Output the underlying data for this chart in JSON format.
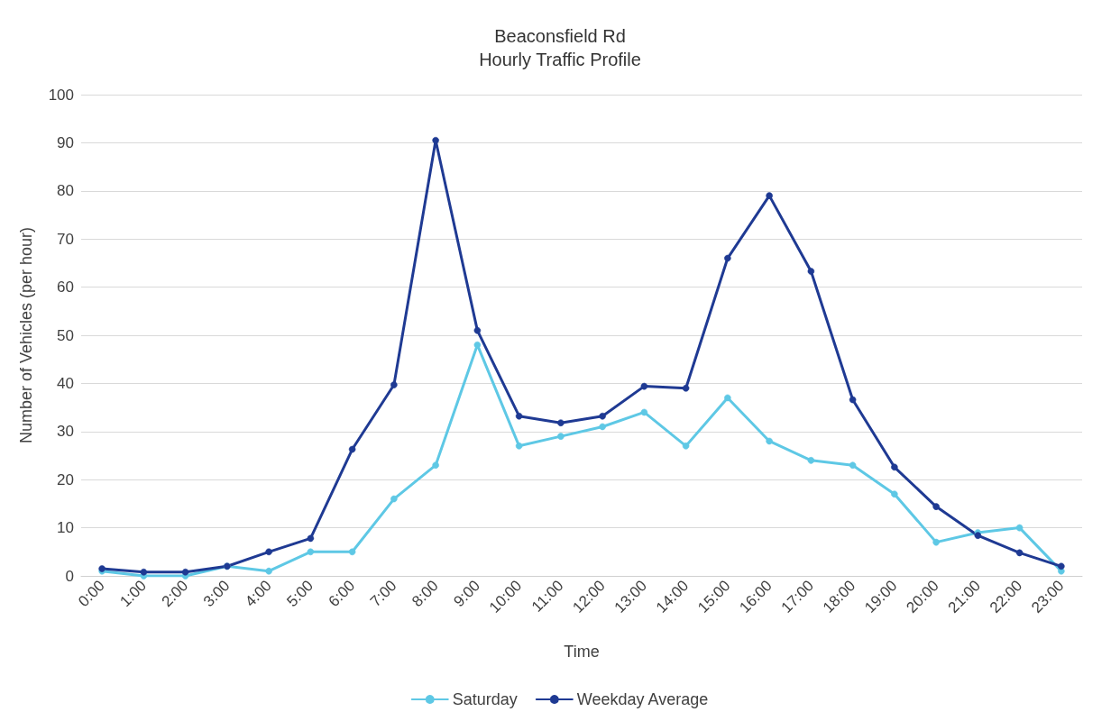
{
  "chart_data": {
    "type": "line",
    "title": "Beaconsfield Rd\nHourly Traffic Profile",
    "xlabel": "Time",
    "ylabel": "Number of Vehicles (per hour)",
    "categories": [
      "0:00",
      "1:00",
      "2:00",
      "3:00",
      "4:00",
      "5:00",
      "6:00",
      "7:00",
      "8:00",
      "9:00",
      "10:00",
      "11:00",
      "12:00",
      "13:00",
      "14:00",
      "15:00",
      "16:00",
      "17:00",
      "18:00",
      "19:00",
      "20:00",
      "21:00",
      "22:00",
      "23:00"
    ],
    "series": [
      {
        "name": "Saturday",
        "color": "#5ec8e5",
        "values": [
          1,
          0,
          0,
          2,
          1,
          5,
          5,
          16,
          23,
          48,
          27,
          29,
          31,
          34,
          27,
          37,
          28,
          24,
          23,
          17,
          7,
          9,
          10,
          1
        ]
      },
      {
        "name": "Weekday Average",
        "color": "#1f3a93",
        "values": [
          1.5,
          0.8,
          0.8,
          2,
          5,
          7.8,
          26.3,
          39.7,
          90.5,
          51,
          33.2,
          31.8,
          33.2,
          39.4,
          39,
          66,
          79,
          63.3,
          36.6,
          22.6,
          14.4,
          8.4,
          4.8,
          2
        ]
      }
    ],
    "ylim": [
      0,
      100
    ],
    "yticks": [
      0,
      10,
      20,
      30,
      40,
      50,
      60,
      70,
      80,
      90,
      100
    ],
    "grid": "y",
    "legend": "bottom",
    "marker": "circle",
    "line_style": "solid"
  }
}
